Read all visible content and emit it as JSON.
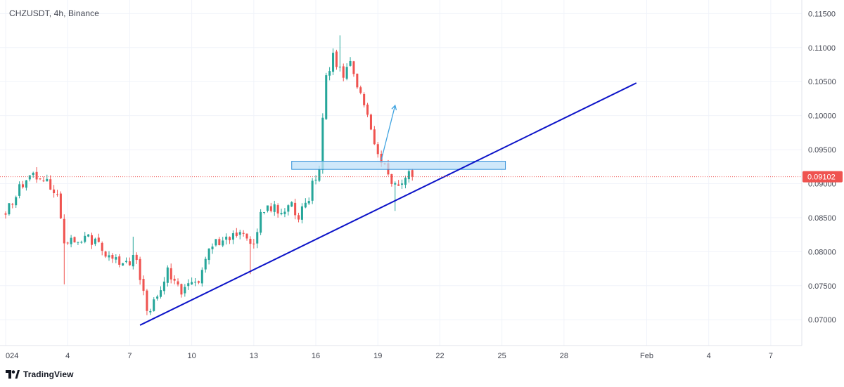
{
  "header": {
    "symbol_title": "CHZUSDT, 4h, Binance"
  },
  "brand": {
    "name": "TradingView",
    "logo_icon": "tradingview-logo-icon"
  },
  "colors": {
    "up": "#26a69a",
    "down": "#ef5350",
    "trendline": "#0c13c8",
    "zone_fill": "#bfe0f8",
    "zone_stroke": "#2f8fd8",
    "arrow": "#3fa3e0",
    "price_badge": "#ef5350",
    "grid": "#f0f3fa",
    "axis_text": "#434651"
  },
  "chart_data": {
    "type": "candlestick",
    "interval": "4h",
    "x_axis": {
      "type": "date",
      "range": [
        "2024-01-01T00:00",
        "2024-02-08T12:00"
      ],
      "ticks": [
        {
          "label": "024",
          "date": "2024-01-01"
        },
        {
          "label": "4",
          "date": "2024-01-04"
        },
        {
          "label": "7",
          "date": "2024-01-07"
        },
        {
          "label": "10",
          "date": "2024-01-10"
        },
        {
          "label": "13",
          "date": "2024-01-13"
        },
        {
          "label": "16",
          "date": "2024-01-16"
        },
        {
          "label": "19",
          "date": "2024-01-19"
        },
        {
          "label": "22",
          "date": "2024-01-22"
        },
        {
          "label": "25",
          "date": "2024-01-25"
        },
        {
          "label": "28",
          "date": "2024-01-28"
        },
        {
          "label": "Feb",
          "date": "2024-02-01"
        },
        {
          "label": "4",
          "date": "2024-02-04"
        },
        {
          "label": "7",
          "date": "2024-02-07"
        }
      ]
    },
    "y_axis": {
      "range": [
        0.0662,
        0.117
      ],
      "position": "right",
      "ticks": [
        "0.07000",
        "0.07500",
        "0.08000",
        "0.08500",
        "0.09000",
        "0.09500",
        "0.10000",
        "0.10500",
        "0.11000",
        "0.11500"
      ]
    },
    "grid": true,
    "last_price": {
      "value": 0.09102,
      "label": "0.09102"
    },
    "waypoints": [
      {
        "t": "2024-01-01T00:00",
        "p": 0.086
      },
      {
        "t": "2024-01-01T20:00",
        "p": 0.09
      },
      {
        "t": "2024-01-02T12:00",
        "p": 0.0914
      },
      {
        "t": "2024-01-03T04:00",
        "p": 0.0898
      },
      {
        "t": "2024-01-03T12:00",
        "p": 0.088
      },
      {
        "t": "2024-01-03T20:00",
        "p": 0.081
      },
      {
        "t": "2024-01-04T12:00",
        "p": 0.0818
      },
      {
        "t": "2024-01-05T00:00",
        "p": 0.0822
      },
      {
        "t": "2024-01-06T00:00",
        "p": 0.0792
      },
      {
        "t": "2024-01-06T16:00",
        "p": 0.0782
      },
      {
        "t": "2024-01-07T08:00",
        "p": 0.079
      },
      {
        "t": "2024-01-07T12:00",
        "p": 0.076
      },
      {
        "t": "2024-01-07T20:00",
        "p": 0.0712
      },
      {
        "t": "2024-01-08T12:00",
        "p": 0.0745
      },
      {
        "t": "2024-01-08T20:00",
        "p": 0.077
      },
      {
        "t": "2024-01-09T12:00",
        "p": 0.0745
      },
      {
        "t": "2024-01-10T08:00",
        "p": 0.0755
      },
      {
        "t": "2024-01-10T16:00",
        "p": 0.079
      },
      {
        "t": "2024-01-11T04:00",
        "p": 0.0815
      },
      {
        "t": "2024-01-11T20:00",
        "p": 0.0822
      },
      {
        "t": "2024-01-12T12:00",
        "p": 0.0828
      },
      {
        "t": "2024-01-13T00:00",
        "p": 0.081
      },
      {
        "t": "2024-01-13T08:00",
        "p": 0.0852
      },
      {
        "t": "2024-01-13T20:00",
        "p": 0.0866
      },
      {
        "t": "2024-01-14T12:00",
        "p": 0.0858
      },
      {
        "t": "2024-01-14T20:00",
        "p": 0.0868
      },
      {
        "t": "2024-01-15T04:00",
        "p": 0.0842
      },
      {
        "t": "2024-01-15T08:00",
        "p": 0.0862
      },
      {
        "t": "2024-01-15T16:00",
        "p": 0.088
      },
      {
        "t": "2024-01-15T20:00",
        "p": 0.0905
      },
      {
        "t": "2024-01-16T04:00",
        "p": 0.0915
      },
      {
        "t": "2024-01-16T08:00",
        "p": 0.1
      },
      {
        "t": "2024-01-16T12:00",
        "p": 0.106
      },
      {
        "t": "2024-01-16T20:00",
        "p": 0.1085
      },
      {
        "t": "2024-01-17T08:00",
        "p": 0.1058
      },
      {
        "t": "2024-01-17T16:00",
        "p": 0.1075
      },
      {
        "t": "2024-01-18T04:00",
        "p": 0.1035
      },
      {
        "t": "2024-01-18T12:00",
        "p": 0.0998
      },
      {
        "t": "2024-01-18T20:00",
        "p": 0.0962
      },
      {
        "t": "2024-01-19T04:00",
        "p": 0.093
      },
      {
        "t": "2024-01-19T12:00",
        "p": 0.0918
      },
      {
        "t": "2024-01-19T20:00",
        "p": 0.0895
      },
      {
        "t": "2024-01-20T04:00",
        "p": 0.0905
      },
      {
        "t": "2024-01-20T12:00",
        "p": 0.0912
      },
      {
        "t": "2024-01-20T16:00",
        "p": 0.09102
      }
    ],
    "drawings": {
      "trendline": {
        "from": {
          "t": "2024-01-07T12:00",
          "p": 0.0692
        },
        "to": {
          "t": "2024-01-31T12:00",
          "p": 0.1048
        }
      },
      "zone": {
        "t1": "2024-01-14T20:00",
        "t2": "2024-01-25T04:00",
        "p_low": 0.0921,
        "p_high": 0.0933
      },
      "arrow": {
        "from": {
          "t": "2024-01-19T04:00",
          "p": 0.0935
        },
        "to": {
          "t": "2024-01-19T20:00",
          "p": 0.1015
        }
      }
    }
  }
}
